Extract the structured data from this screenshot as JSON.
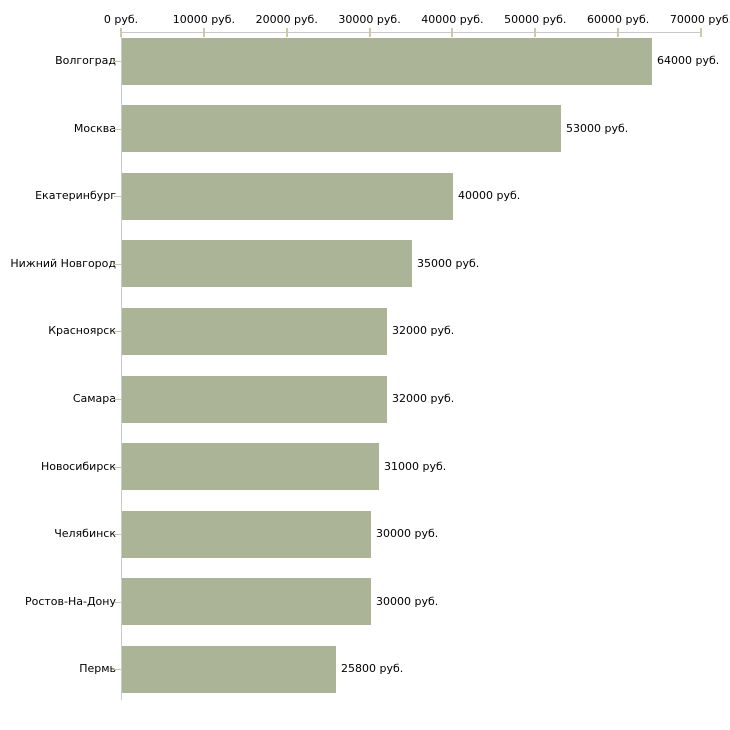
{
  "chart_data": {
    "type": "bar",
    "orientation": "horizontal",
    "title": "",
    "xlabel": "",
    "ylabel": "",
    "legend_position": "none",
    "grid": "off",
    "categories": [
      "Волгоград",
      "Москва",
      "Екатеринбург",
      "Нижний Новгород",
      "Красноярск",
      "Самара",
      "Новосибирск",
      "Челябинск",
      "Ростов-На-Дону",
      "Пермь"
    ],
    "values": [
      64000,
      53000,
      40000,
      35000,
      32000,
      32000,
      31000,
      30000,
      30000,
      25800
    ],
    "bar_labels": [
      "64000 руб.",
      "53000 руб.",
      "40000 руб.",
      "35000 руб.",
      "32000 руб.",
      "32000 руб.",
      "31000 руб.",
      "30000 руб.",
      "30000 руб.",
      "25800 руб."
    ],
    "x_axis": {
      "position": "top",
      "range": [
        0,
        70000
      ],
      "ticks": [
        0,
        10000,
        20000,
        30000,
        40000,
        50000,
        60000,
        70000
      ],
      "tick_labels": [
        "0 руб.",
        "10000 руб.",
        "20000 руб.",
        "30000 руб.",
        "40000 руб.",
        "50000 руб.",
        "60000 руб.",
        "70000 руб."
      ]
    },
    "colors": {
      "bar": "#acb497",
      "axis_line": "#c9c9c9",
      "tick_mark": "#cdc9a2",
      "text": "#000000",
      "background": "#ffffff"
    }
  }
}
